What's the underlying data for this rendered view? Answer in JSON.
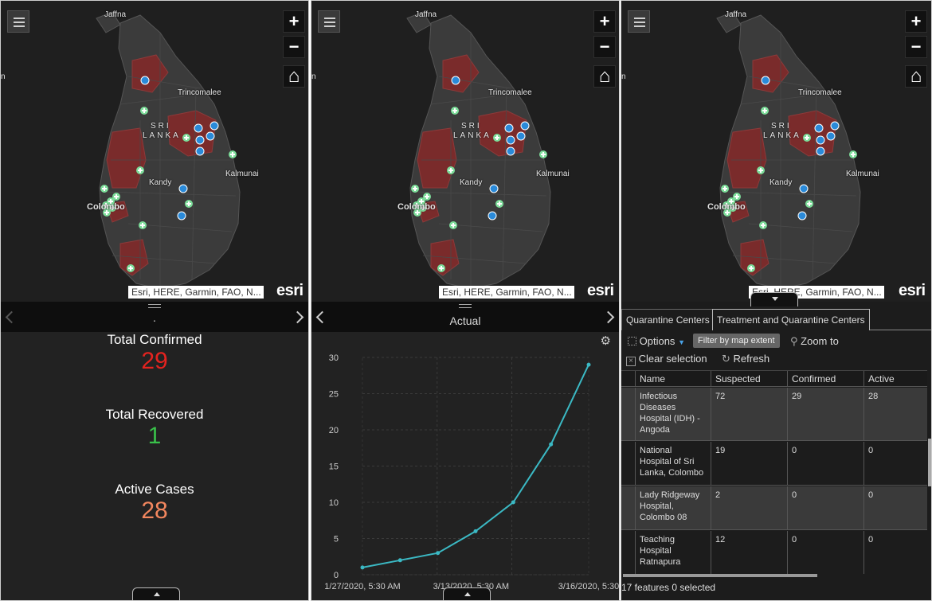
{
  "map": {
    "labels": {
      "jaffna": "Jaffna",
      "trincomalee": "Trincomalee",
      "sri": "SRI",
      "lanka": "LANKA",
      "kalmunai": "Kalmunai",
      "kandy": "Kandy",
      "colombo": "Colombo",
      "edge": "n"
    },
    "attribution": "Esri, HERE, Garmin, FAO, N...",
    "logo": "esri",
    "zoom_in": "+",
    "zoom_out": "−",
    "home_icon": "home-icon",
    "menu_icon": "hamburger-icon",
    "colors": {
      "water": "#1f1f1f",
      "land": "#3b3b3b",
      "affected": "#7a2b2b",
      "hospital": "#2a8ad9",
      "quarantine": "#7ddd9a"
    }
  },
  "indicators_panel": {
    "page_title": ".",
    "items": [
      {
        "title": "Total Confirmed",
        "value": "29",
        "color": "#e4231f"
      },
      {
        "title": "Total Recovered",
        "value": "1",
        "color": "#39c04a"
      },
      {
        "title": "Active Cases",
        "value": "28",
        "color": "#f2865e"
      }
    ]
  },
  "chart_panel": {
    "title": "Actual",
    "settings_icon": "gear-icon"
  },
  "chart_data": {
    "type": "line",
    "title": "Actual",
    "xlabel": "",
    "ylabel": "",
    "x_tick_labels": [
      "1/27/2020, 5:30 AM",
      "3/13/2020, 5:30 AM",
      "3/16/2020, 5:30"
    ],
    "y_ticks": [
      0,
      5,
      10,
      15,
      20,
      25,
      30
    ],
    "ylim": [
      0,
      30
    ],
    "grid": true,
    "series": [
      {
        "values": [
          1,
          2,
          3,
          6,
          10,
          18,
          29
        ]
      }
    ],
    "line_color": "#3bb9c4"
  },
  "table_panel": {
    "tabs": [
      "Quarantine Centers",
      "Treatment and Quarantine Centers"
    ],
    "active_tab": 1,
    "toolbar": {
      "options": "Options",
      "filter": "Filter by map extent",
      "zoom_to": "Zoom to",
      "clear_selection": "Clear selection",
      "refresh": "Refresh"
    },
    "columns": [
      "Name",
      "Suspected",
      "Confirmed",
      "Active"
    ],
    "rows": [
      {
        "name": "Infectious\nDiseases\nHospital (IDH) -\nAngoda",
        "suspected": "72",
        "confirmed": "29",
        "active": "28"
      },
      {
        "name": "National\nHospital of Sri\nLanka, Colombo",
        "suspected": "19",
        "confirmed": "0",
        "active": "0"
      },
      {
        "name": "Lady Ridgeway\nHospital,\nColombo 08",
        "suspected": "2",
        "confirmed": "0",
        "active": "0"
      },
      {
        "name": "Teaching\nHospital\nRatnapura",
        "suspected": "12",
        "confirmed": "0",
        "active": "0"
      }
    ],
    "footer": "17 features 0 selected"
  }
}
